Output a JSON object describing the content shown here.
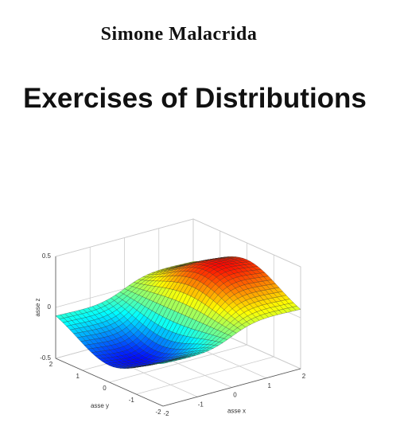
{
  "author": "Simone Malacrida",
  "title": "Exercises of Distributions",
  "figure": {
    "z_ticks": [
      "0.5",
      "0",
      "-0.5"
    ],
    "y_ticks": [
      "2",
      "1",
      "0",
      "-1",
      "-2"
    ],
    "x_ticks": [
      "-2",
      "-1",
      "0",
      "1",
      "2"
    ],
    "z_label": "asse z",
    "y_label": "asse y",
    "x_label": "asse x"
  }
}
